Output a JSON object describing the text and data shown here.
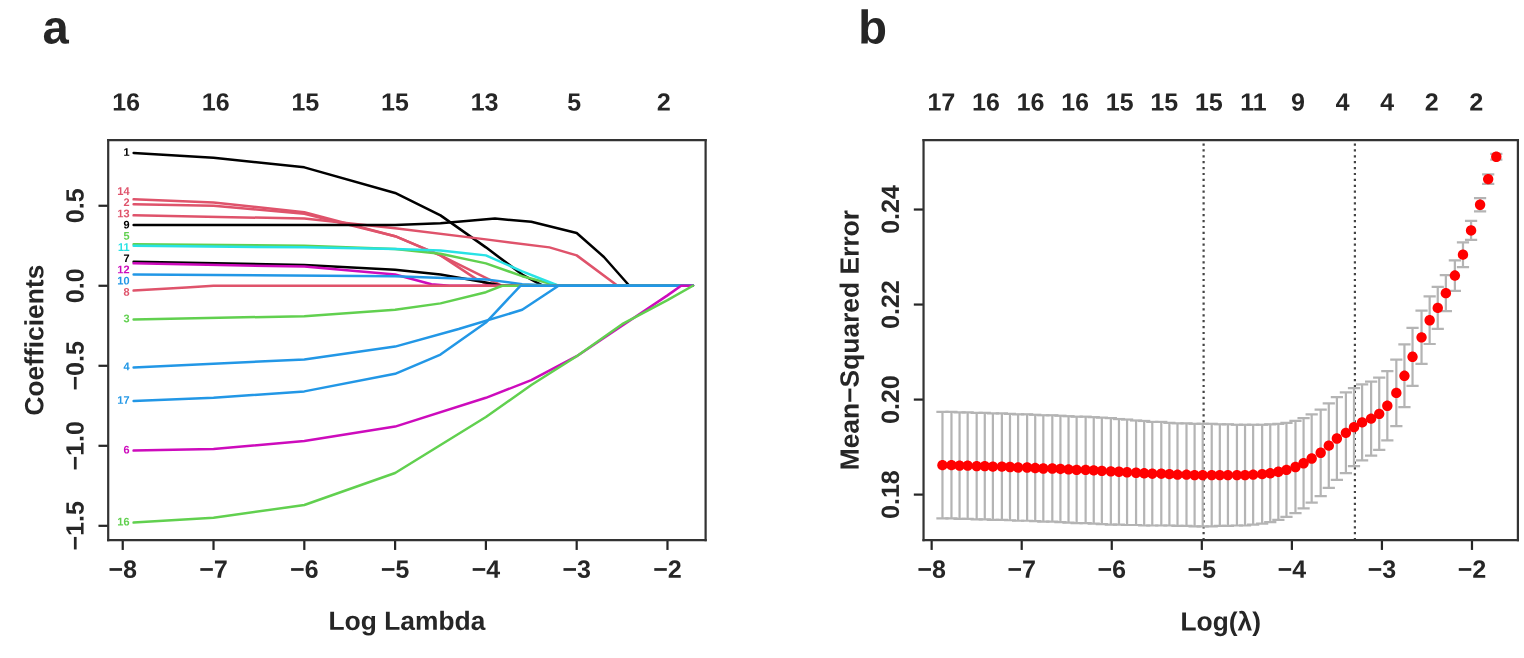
{
  "chart_data": [
    {
      "type": "line",
      "title": "a",
      "xlabel": "Log Lambda",
      "ylabel": "Coefficients",
      "xlim": [
        -8.16,
        -1.58
      ],
      "ylim": [
        -1.59,
        0.91
      ],
      "xticks": [
        {
          "value": -8,
          "label": "−8"
        },
        {
          "value": -7,
          "label": "−7"
        },
        {
          "value": -6,
          "label": "−6"
        },
        {
          "value": -5,
          "label": "−5"
        },
        {
          "value": -4,
          "label": "−4"
        },
        {
          "value": -3,
          "label": "−3"
        },
        {
          "value": -2,
          "label": "−2"
        }
      ],
      "yticks": [
        {
          "value": -1.5,
          "label": "−1.5"
        },
        {
          "value": -1.0,
          "label": "−1.0"
        },
        {
          "value": -0.5,
          "label": "−0.5"
        },
        {
          "value": 0,
          "label": "0.0"
        },
        {
          "value": 0.5,
          "label": "0.5"
        }
      ],
      "annotations": [
        "16",
        "16",
        "15",
        "15",
        "13",
        "5",
        "2"
      ],
      "series": [
        {
          "name": "1",
          "color": "#000000",
          "x": [
            -7.88,
            -7,
            -6,
            -5,
            -4.5,
            -4,
            -3.6,
            -3.37,
            -1.72
          ],
          "values": [
            0.83,
            0.8,
            0.74,
            0.58,
            0.44,
            0.24,
            0.07,
            0,
            0
          ]
        },
        {
          "name": "14",
          "color": "#df536b",
          "x": [
            -7.88,
            -7,
            -6,
            -5,
            -4.5,
            -4,
            -3.82,
            -1.72
          ],
          "values": [
            0.54,
            0.52,
            0.46,
            0.31,
            0.19,
            0.05,
            0,
            0
          ]
        },
        {
          "name": "2",
          "color": "#df536b",
          "x": [
            -7.88,
            -7,
            -6,
            -5,
            -4.5,
            -4.1,
            -3.95,
            -1.72
          ],
          "values": [
            0.51,
            0.5,
            0.45,
            0.31,
            0.19,
            0.04,
            0,
            0
          ]
        },
        {
          "name": "13",
          "color": "#df536b",
          "x": [
            -7.88,
            -6,
            -5,
            -4,
            -3.3,
            -3,
            -2.55,
            -1.72
          ],
          "values": [
            0.44,
            0.42,
            0.36,
            0.29,
            0.24,
            0.19,
            0,
            0
          ]
        },
        {
          "name": "9",
          "color": "#000000",
          "x": [
            -7.88,
            -5,
            -4.5,
            -3.9,
            -3.5,
            -3,
            -2.7,
            -2.42,
            -1.72
          ],
          "values": [
            0.38,
            0.38,
            0.39,
            0.42,
            0.4,
            0.33,
            0.18,
            0,
            0
          ]
        },
        {
          "name": "5",
          "color": "#61d04f",
          "x": [
            -7.88,
            -6,
            -5,
            -4.5,
            -4,
            -3.6,
            -3.2,
            -1.72
          ],
          "values": [
            0.26,
            0.25,
            0.23,
            0.2,
            0.14,
            0.06,
            0,
            0
          ]
        },
        {
          "name": "11",
          "color": "#28e2e5",
          "x": [
            -7.88,
            -6,
            -5,
            -4.5,
            -4,
            -3.6,
            -3.2,
            -1.72
          ],
          "values": [
            0.25,
            0.24,
            0.23,
            0.22,
            0.19,
            0.09,
            0,
            0
          ]
        },
        {
          "name": "7",
          "color": "#000000",
          "x": [
            -7.88,
            -6,
            -5,
            -4.5,
            -4,
            -3.82,
            -1.72
          ],
          "values": [
            0.15,
            0.13,
            0.1,
            0.07,
            0.02,
            0,
            0
          ]
        },
        {
          "name": "12",
          "color": "#cd0bbc",
          "x": [
            -7.88,
            -6,
            -5,
            -4.6,
            -4.4,
            -1.72
          ],
          "values": [
            0.14,
            0.12,
            0.07,
            0.01,
            0,
            0
          ]
        },
        {
          "name": "10",
          "color": "#2297e6",
          "x": [
            -7.88,
            -5,
            -4,
            -3.6,
            -3.2,
            -1.72
          ],
          "values": [
            0.07,
            0.06,
            0.04,
            0.01,
            0,
            0
          ]
        },
        {
          "name": "8",
          "color": "#df536b",
          "x": [
            -7.88,
            -7.3,
            -7,
            -1.72
          ],
          "values": [
            -0.03,
            -0.01,
            0,
            0
          ]
        },
        {
          "name": "3",
          "color": "#61d04f",
          "x": [
            -7.88,
            -6,
            -5,
            -4.5,
            -4,
            -3.82,
            -1.72
          ],
          "values": [
            -0.21,
            -0.19,
            -0.15,
            -0.11,
            -0.04,
            0,
            0
          ]
        },
        {
          "name": "4",
          "color": "#2297e6",
          "x": [
            -7.88,
            -6,
            -5,
            -4.3,
            -3.6,
            -3.2,
            -1.72
          ],
          "values": [
            -0.51,
            -0.46,
            -0.38,
            -0.27,
            -0.15,
            0,
            0
          ]
        },
        {
          "name": "17",
          "color": "#2297e6",
          "x": [
            -7.88,
            -7,
            -6,
            -5,
            -4.5,
            -4,
            -3.62,
            -1.72
          ],
          "values": [
            -0.72,
            -0.7,
            -0.66,
            -0.55,
            -0.43,
            -0.23,
            0,
            0
          ]
        },
        {
          "name": "6",
          "color": "#cd0bbc",
          "x": [
            -7.88,
            -7,
            -6,
            -5,
            -4,
            -3.5,
            -3,
            -2.5,
            -2,
            -1.85,
            -1.72
          ],
          "values": [
            -1.03,
            -1.02,
            -0.97,
            -0.88,
            -0.7,
            -0.59,
            -0.44,
            -0.25,
            -0.06,
            0,
            0
          ]
        },
        {
          "name": "16",
          "color": "#61d04f",
          "x": [
            -7.88,
            -7,
            -6,
            -5,
            -4,
            -3.5,
            -3,
            -2.5,
            -2,
            -1.72
          ],
          "values": [
            -1.48,
            -1.45,
            -1.37,
            -1.17,
            -0.82,
            -0.62,
            -0.44,
            -0.24,
            -0.09,
            0
          ]
        }
      ]
    },
    {
      "type": "scatter",
      "title": "b",
      "xlabel": "Log(λ)",
      "ylabel": "Mean−Squared Error",
      "xlim": [
        -8.09,
        -1.49
      ],
      "ylim": [
        0.1704,
        0.2546
      ],
      "xticks": [
        {
          "value": -8,
          "label": "−8"
        },
        {
          "value": -7,
          "label": "−7"
        },
        {
          "value": -6,
          "label": "−6"
        },
        {
          "value": -5,
          "label": "−5"
        },
        {
          "value": -4,
          "label": "−4"
        },
        {
          "value": -3,
          "label": "−3"
        },
        {
          "value": -2,
          "label": "−2"
        }
      ],
      "yticks": [
        {
          "value": 0.18,
          "label": "0.18"
        },
        {
          "value": 0.2,
          "label": "0.20"
        },
        {
          "value": 0.22,
          "label": "0.22"
        },
        {
          "value": 0.24,
          "label": "0.24"
        }
      ],
      "annotations": [
        "17",
        "16",
        "16",
        "16",
        "15",
        "15",
        "15",
        "11",
        "9",
        "4",
        "4",
        "2",
        "2"
      ],
      "marker": "circle",
      "ref_lines": [
        {
          "axis": "x",
          "value": -4.98,
          "color": "#444444",
          "line_style": "dotted"
        },
        {
          "axis": "x",
          "value": -3.3,
          "color": "#444444",
          "line_style": "dotted"
        }
      ],
      "series": [
        {
          "color": "#ff0000",
          "x": [
            -7.88,
            -7.78,
            -7.69,
            -7.6,
            -7.5,
            -7.41,
            -7.32,
            -7.22,
            -7.13,
            -7.04,
            -6.94,
            -6.85,
            -6.76,
            -6.66,
            -6.57,
            -6.48,
            -6.39,
            -6.29,
            -6.2,
            -6.11,
            -6.01,
            -5.92,
            -5.83,
            -5.73,
            -5.64,
            -5.55,
            -5.45,
            -5.36,
            -5.27,
            -5.17,
            -5.08,
            -4.99,
            -4.89,
            -4.8,
            -4.71,
            -4.61,
            -4.52,
            -4.43,
            -4.33,
            -4.24,
            -4.15,
            -4.06,
            -3.96,
            -3.87,
            -3.78,
            -3.68,
            -3.59,
            -3.5,
            -3.4,
            -3.31,
            -3.22,
            -3.12,
            -3.03,
            -2.94,
            -2.84,
            -2.75,
            -2.66,
            -2.56,
            -2.47,
            -2.38,
            -2.29,
            -2.19,
            -2.1,
            -2.01,
            -1.91,
            -1.82,
            -1.73
          ],
          "values": [
            0.1862,
            0.1862,
            0.1861,
            0.1861,
            0.186,
            0.186,
            0.1859,
            0.1859,
            0.1858,
            0.1857,
            0.1857,
            0.1856,
            0.1855,
            0.1855,
            0.1854,
            0.1853,
            0.1852,
            0.1852,
            0.1851,
            0.185,
            0.1849,
            0.1848,
            0.1847,
            0.1846,
            0.1845,
            0.1844,
            0.1844,
            0.1843,
            0.1842,
            0.1842,
            0.1841,
            0.1841,
            0.1841,
            0.1841,
            0.1841,
            0.1841,
            0.1841,
            0.1842,
            0.1843,
            0.1845,
            0.1848,
            0.1852,
            0.1858,
            0.1866,
            0.1876,
            0.1888,
            0.1903,
            0.1918,
            0.193,
            0.1942,
            0.1952,
            0.196,
            0.197,
            0.1987,
            0.2014,
            0.205,
            0.209,
            0.2131,
            0.2167,
            0.2193,
            0.2224,
            0.2261,
            0.2305,
            0.2356,
            0.241,
            0.2464,
            0.2511
          ],
          "errors": [
            0.0112,
            0.0112,
            0.0112,
            0.0112,
            0.0112,
            0.0112,
            0.0112,
            0.0112,
            0.0112,
            0.0112,
            0.0112,
            0.0112,
            0.0112,
            0.0112,
            0.0112,
            0.0112,
            0.0112,
            0.0112,
            0.0112,
            0.0112,
            0.0112,
            0.0111,
            0.0111,
            0.011,
            0.011,
            0.0109,
            0.0109,
            0.0108,
            0.0108,
            0.0108,
            0.0108,
            0.0108,
            0.0108,
            0.0107,
            0.0107,
            0.0106,
            0.0106,
            0.0105,
            0.0104,
            0.0103,
            0.0101,
            0.0099,
            0.0097,
            0.0095,
            0.0093,
            0.0091,
            0.0089,
            0.0087,
            0.0085,
            0.0082,
            0.008,
            0.0078,
            0.0076,
            0.0073,
            0.007,
            0.0066,
            0.0061,
            0.0056,
            0.005,
            0.0044,
            0.0038,
            0.0032,
            0.0026,
            0.002,
            0.0014,
            0.001,
            0.0006
          ]
        }
      ]
    }
  ]
}
